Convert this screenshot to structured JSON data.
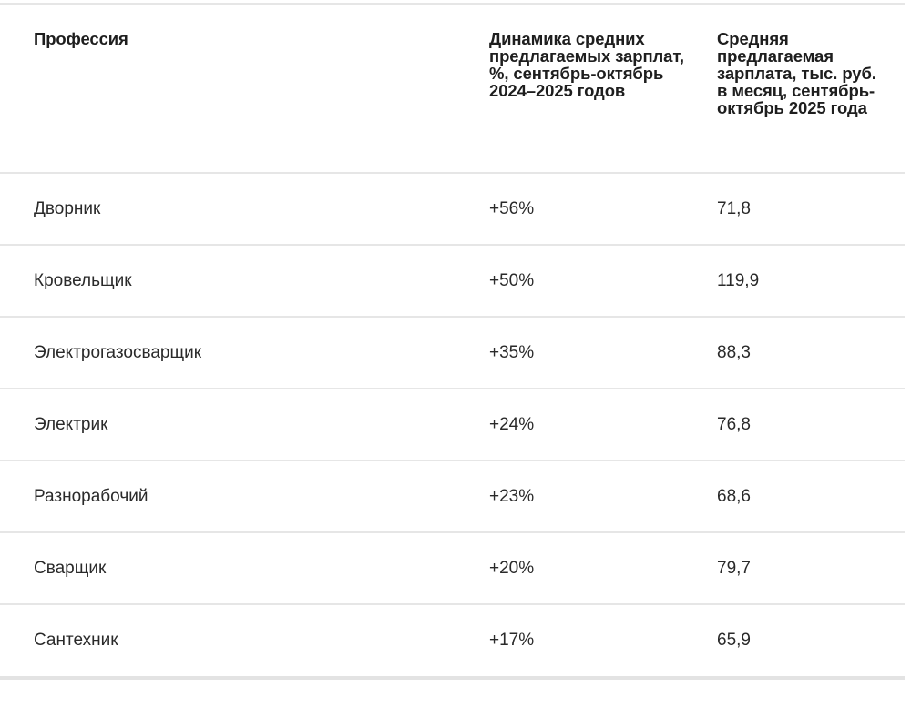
{
  "table": {
    "headers": [
      "Профессия",
      "Динамика средних предлагаемых зарплат, %, сентябрь-октябрь 2024–2025 годов",
      "Средняя предлагаемая зарплата, тыс. руб. в месяц, сентябрь-октябрь 2025 года"
    ],
    "rows": [
      {
        "profession": "Дворник",
        "change": "+56%",
        "salary": "71,8"
      },
      {
        "profession": "Кровельщик",
        "change": "+50%",
        "salary": "119,9"
      },
      {
        "profession": "Электрогазосварщик",
        "change": "+35%",
        "salary": "88,3"
      },
      {
        "profession": "Электрик",
        "change": "+24%",
        "salary": "76,8"
      },
      {
        "profession": "Разнорабочий",
        "change": "+23%",
        "salary": "68,6"
      },
      {
        "profession": "Сварщик",
        "change": "+20%",
        "salary": "79,7"
      },
      {
        "profession": "Сантехник",
        "change": "+17%",
        "salary": "65,9"
      }
    ]
  },
  "colors": {
    "text": "#222222",
    "border": "#e6e6e6",
    "background": "#ffffff"
  }
}
